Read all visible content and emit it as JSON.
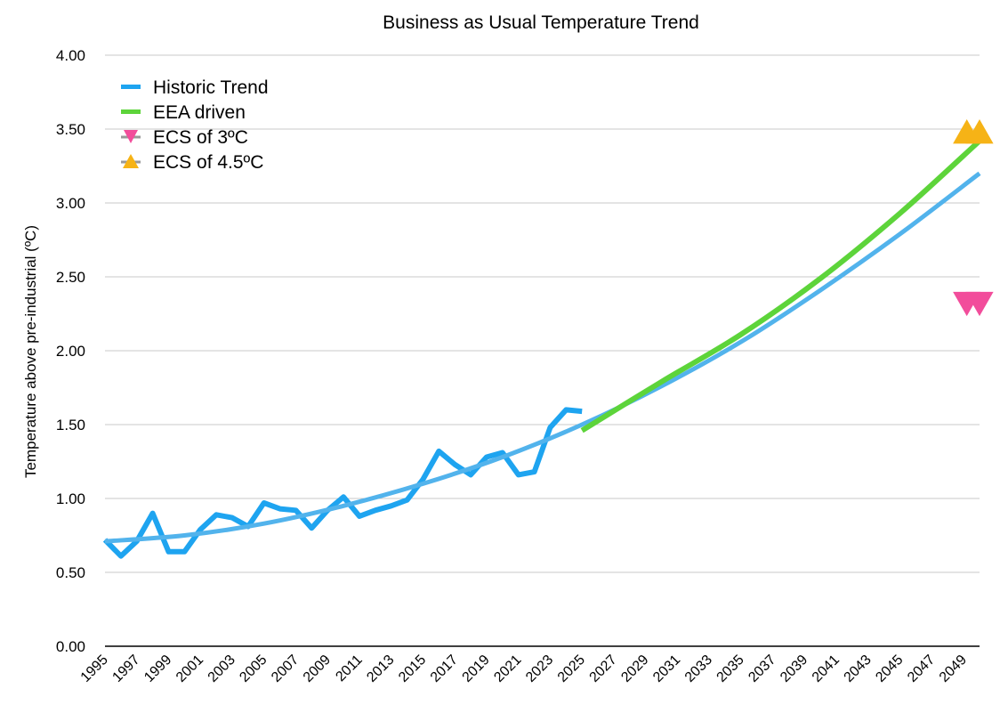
{
  "chart_data": {
    "type": "line",
    "title": "Business as Usual Temperature Trend",
    "xlabel": "",
    "ylabel": "Temperature above pre-industrial (ºC)",
    "xlim": [
      1995,
      2050
    ],
    "ylim": [
      0,
      4
    ],
    "grid": true,
    "legend_position": "top-left",
    "y_ticks": [
      "0.00",
      "0.50",
      "1.00",
      "1.50",
      "2.00",
      "2.50",
      "3.00",
      "3.50",
      "4.00"
    ],
    "x_ticks": [
      "1995",
      "1997",
      "1999",
      "2001",
      "2003",
      "2005",
      "2007",
      "2009",
      "2011",
      "2013",
      "2015",
      "2017",
      "2019",
      "2021",
      "2023",
      "2025",
      "2027",
      "2029",
      "2031",
      "2033",
      "2035",
      "2037",
      "2039",
      "2041",
      "2043",
      "2045",
      "2047",
      "2049"
    ],
    "series": [
      {
        "name": "Historic Trend",
        "kind": "observed",
        "color": "#1ea4f0",
        "x": [
          1995,
          1996,
          1997,
          1998,
          1999,
          2000,
          2001,
          2002,
          2003,
          2004,
          2005,
          2006,
          2007,
          2008,
          2009,
          2010,
          2011,
          2012,
          2013,
          2014,
          2015,
          2016,
          2017,
          2018,
          2019,
          2020,
          2021,
          2022,
          2023,
          2024,
          2025
        ],
        "y": [
          0.72,
          0.61,
          0.71,
          0.9,
          0.64,
          0.64,
          0.79,
          0.89,
          0.87,
          0.81,
          0.97,
          0.93,
          0.92,
          0.8,
          0.92,
          1.01,
          0.88,
          0.92,
          0.95,
          0.99,
          1.13,
          1.32,
          1.23,
          1.16,
          1.28,
          1.31,
          1.16,
          1.18,
          1.48,
          1.6,
          1.59
        ]
      },
      {
        "name": "Historic Trend (fit)",
        "kind": "trend",
        "color": "#52b3ec",
        "x": [
          1995,
          2000,
          2005,
          2010,
          2015,
          2020,
          2025,
          2030,
          2035,
          2040,
          2045,
          2050
        ],
        "y": [
          0.71,
          0.75,
          0.83,
          0.95,
          1.1,
          1.28,
          1.5,
          1.76,
          2.06,
          2.41,
          2.79,
          3.2
        ]
      },
      {
        "name": "EEA driven",
        "kind": "projection",
        "color": "#5dd43a",
        "x": [
          2025,
          2030,
          2035,
          2040,
          2045,
          2050
        ],
        "y": [
          1.46,
          1.79,
          2.11,
          2.49,
          2.93,
          3.42
        ]
      },
      {
        "name": "ECS of 3ºC",
        "kind": "marker-down",
        "color": "#f24d9b",
        "x": [
          2049.2,
          2050
        ],
        "y": [
          2.32,
          2.32
        ]
      },
      {
        "name": "ECS of 4.5ºC",
        "kind": "marker-up",
        "color": "#f6b316",
        "x": [
          2049.2,
          2050
        ],
        "y": [
          3.48,
          3.48
        ]
      }
    ],
    "legend": [
      {
        "label": "Historic Trend",
        "symbol": "line",
        "color": "#1ea4f0"
      },
      {
        "label": "EEA driven",
        "symbol": "line",
        "color": "#5dd43a"
      },
      {
        "label": "ECS of 3ºC",
        "symbol": "triangle-down",
        "color": "#f24d9b"
      },
      {
        "label": "ECS of 4.5ºC",
        "symbol": "triangle-up",
        "color": "#f6b316"
      }
    ]
  }
}
